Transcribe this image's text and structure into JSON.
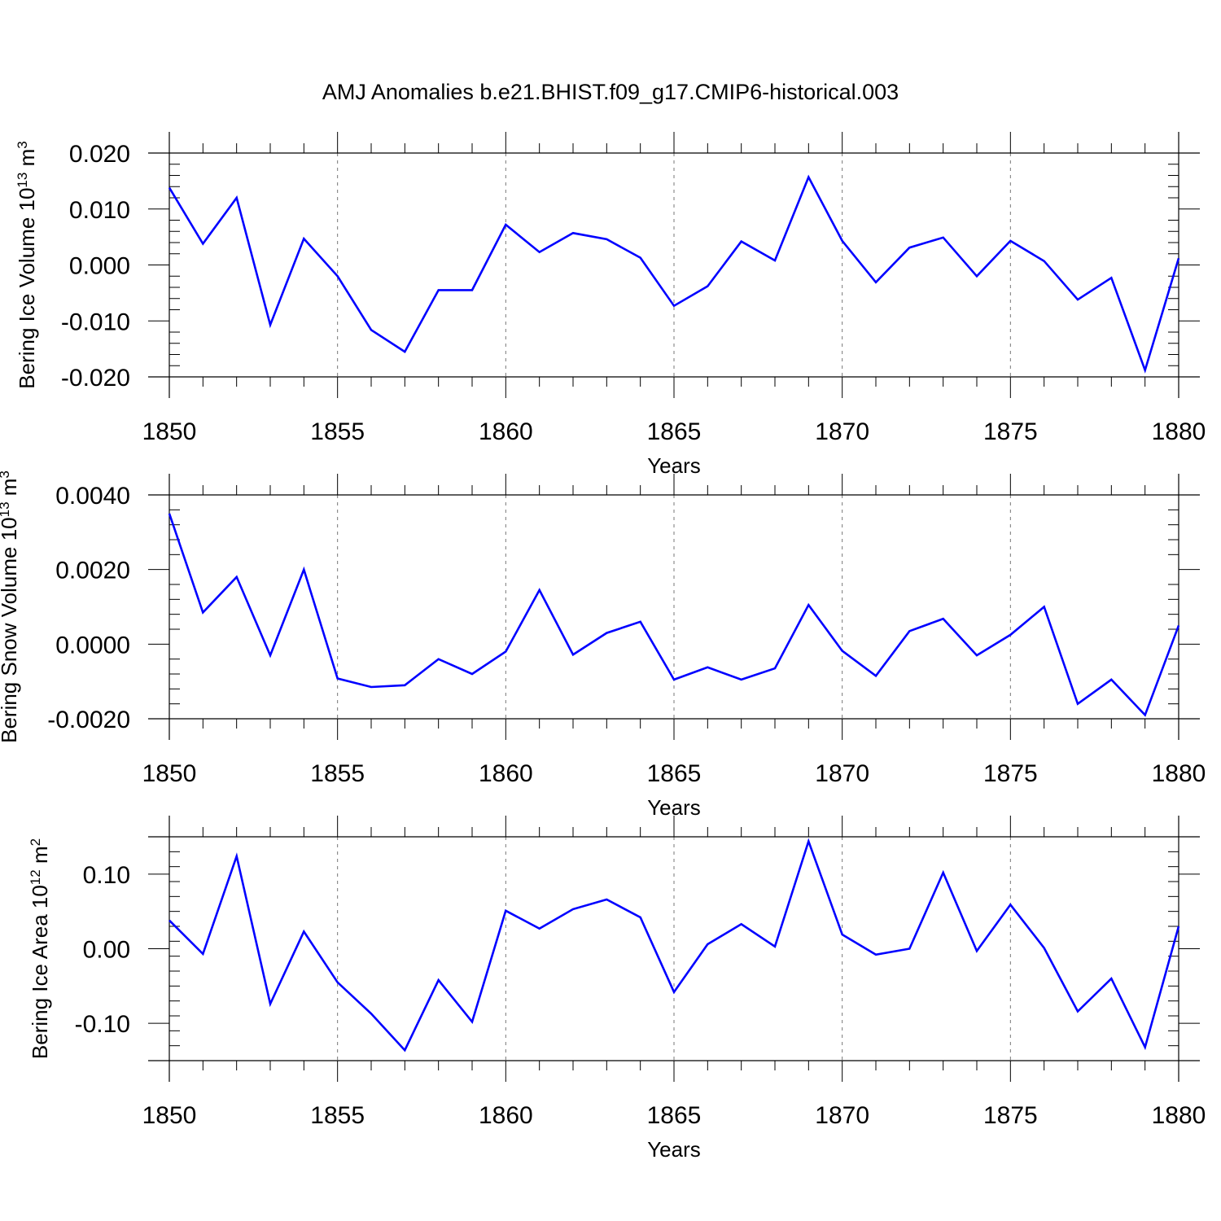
{
  "title": "AMJ Anomalies b.e21.BHIST.f09_g17.CMIP6-historical.003",
  "colors": {
    "line": "#0000ff",
    "axis": "#000000",
    "grid": "#777777",
    "background": "#ffffff"
  },
  "chart_data": [
    {
      "type": "line",
      "ylabel": "Bering Ice Volume",
      "yunit_base": "10",
      "yunit_exp": "13",
      "yunit_sym": "m",
      "yunit_pow": "3",
      "xlabel": "Years",
      "xlim": [
        1850,
        1880
      ],
      "ylim": [
        -0.02,
        0.02
      ],
      "xticks": [
        1850,
        1855,
        1860,
        1865,
        1870,
        1875,
        1880
      ],
      "xtick_labels": [
        "1850",
        "1855",
        "1860",
        "1865",
        "1870",
        "1875",
        "1880"
      ],
      "yticks": [
        0.02,
        0.01,
        0.0,
        -0.01,
        -0.02
      ],
      "ytick_labels": [
        "0.020",
        "0.010",
        "0.000",
        "-0.010",
        "-0.020"
      ],
      "x": [
        1850,
        1851,
        1852,
        1853,
        1854,
        1855,
        1856,
        1857,
        1858,
        1859,
        1860,
        1861,
        1862,
        1863,
        1864,
        1865,
        1866,
        1867,
        1868,
        1869,
        1870,
        1871,
        1872,
        1873,
        1874,
        1875,
        1876,
        1877,
        1878,
        1879,
        1880
      ],
      "values": [
        0.0138,
        0.0038,
        0.012,
        -0.0107,
        0.0047,
        -0.002,
        -0.0116,
        -0.0155,
        -0.0045,
        -0.0045,
        0.0072,
        0.0023,
        0.0057,
        0.0046,
        0.0013,
        -0.0073,
        -0.0038,
        0.0042,
        0.0008,
        0.0157,
        0.0043,
        -0.0031,
        0.0031,
        0.0049,
        -0.002,
        0.0043,
        0.0007,
        -0.0062,
        -0.0023,
        -0.0188,
        0.0012
      ]
    },
    {
      "type": "line",
      "ylabel": "Bering Snow Volume",
      "yunit_base": "10",
      "yunit_exp": "13",
      "yunit_sym": "m",
      "yunit_pow": "3",
      "xlabel": "Years",
      "xlim": [
        1850,
        1880
      ],
      "ylim": [
        -0.002,
        0.004
      ],
      "xticks": [
        1850,
        1855,
        1860,
        1865,
        1870,
        1875,
        1880
      ],
      "xtick_labels": [
        "1850",
        "1855",
        "1860",
        "1865",
        "1870",
        "1875",
        "1880"
      ],
      "yticks": [
        0.004,
        0.002,
        0.0,
        -0.002
      ],
      "ytick_labels": [
        "0.0040",
        "0.0020",
        "0.0000",
        "-0.0020"
      ],
      "x": [
        1850,
        1851,
        1852,
        1853,
        1854,
        1855,
        1856,
        1857,
        1858,
        1859,
        1860,
        1861,
        1862,
        1863,
        1864,
        1865,
        1866,
        1867,
        1868,
        1869,
        1870,
        1871,
        1872,
        1873,
        1874,
        1875,
        1876,
        1877,
        1878,
        1879,
        1880
      ],
      "values": [
        0.0035,
        0.00085,
        0.0018,
        -0.0003,
        0.002,
        -0.00092,
        -0.00115,
        -0.0011,
        -0.0004,
        -0.0008,
        -0.0002,
        0.00145,
        -0.00028,
        0.0003,
        0.0006,
        -0.00095,
        -0.00062,
        -0.00095,
        -0.00065,
        0.00105,
        -0.00018,
        -0.00085,
        0.00035,
        0.00068,
        -0.0003,
        0.00025,
        0.001,
        -0.0016,
        -0.00095,
        -0.0019,
        0.0005
      ]
    },
    {
      "type": "line",
      "ylabel": "Bering Ice Area",
      "yunit_base": "10",
      "yunit_exp": "12",
      "yunit_sym": "m",
      "yunit_pow": "2",
      "xlabel": "Years",
      "xlim": [
        1850,
        1880
      ],
      "ylim": [
        -0.15,
        0.15
      ],
      "xticks": [
        1850,
        1855,
        1860,
        1865,
        1870,
        1875,
        1880
      ],
      "xtick_labels": [
        "1850",
        "1855",
        "1860",
        "1865",
        "1870",
        "1875",
        "1880"
      ],
      "yticks": [
        0.1,
        0.0,
        -0.1
      ],
      "ytick_labels": [
        "0.10",
        "0.00",
        "-0.10"
      ],
      "x": [
        1850,
        1851,
        1852,
        1853,
        1854,
        1855,
        1856,
        1857,
        1858,
        1859,
        1860,
        1861,
        1862,
        1863,
        1864,
        1865,
        1866,
        1867,
        1868,
        1869,
        1870,
        1871,
        1872,
        1873,
        1874,
        1875,
        1876,
        1877,
        1878,
        1879,
        1880
      ],
      "values": [
        0.038,
        -0.007,
        0.124,
        -0.074,
        0.023,
        -0.045,
        -0.087,
        -0.136,
        -0.042,
        -0.098,
        0.051,
        0.027,
        0.053,
        0.066,
        0.042,
        -0.058,
        0.006,
        0.033,
        0.003,
        0.144,
        0.019,
        -0.008,
        0.0,
        0.102,
        -0.003,
        0.059,
        0.001,
        -0.084,
        -0.04,
        -0.132,
        0.03
      ]
    }
  ]
}
